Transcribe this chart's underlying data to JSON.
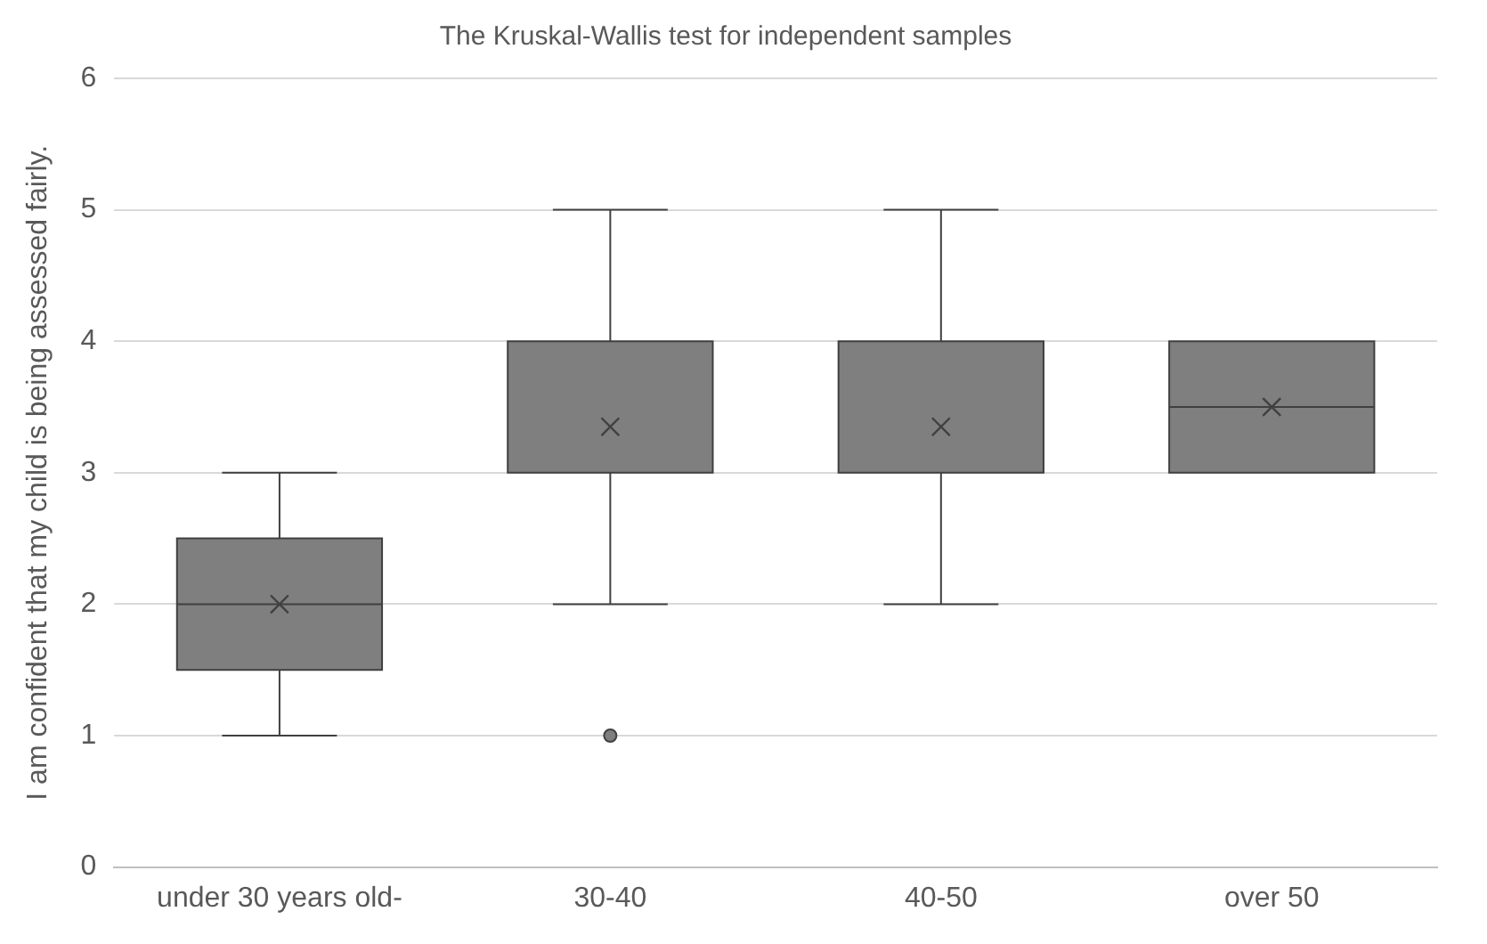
{
  "chart_data": {
    "type": "box",
    "title": "The Kruskal-Wallis test for independent samples",
    "ylabel": "I am confident that my child is being assessed fairly.",
    "categories": [
      "under 30 years old-",
      "30-40",
      "40-50",
      "over 50"
    ],
    "series": [
      {
        "color": "#7f7f7f",
        "boxes": [
          {
            "low": 1,
            "q1": 1.5,
            "median": 2,
            "q3": 2.5,
            "high": 3,
            "mean": 2
          },
          {
            "low": 2,
            "q1": 3,
            "median": 3,
            "q3": 4,
            "high": 5,
            "mean": 3.35,
            "outliers": [
              1
            ]
          },
          {
            "low": 2,
            "q1": 3,
            "median": 3,
            "q3": 4,
            "high": 5,
            "mean": 3.35
          },
          {
            "low": 3,
            "q1": 3,
            "median": 3.5,
            "q3": 4,
            "high": 4,
            "mean": 3.5
          }
        ]
      }
    ],
    "ylim": [
      0,
      6
    ],
    "yticks": [
      0,
      1,
      2,
      3,
      4,
      5,
      6
    ],
    "grid": "y"
  }
}
